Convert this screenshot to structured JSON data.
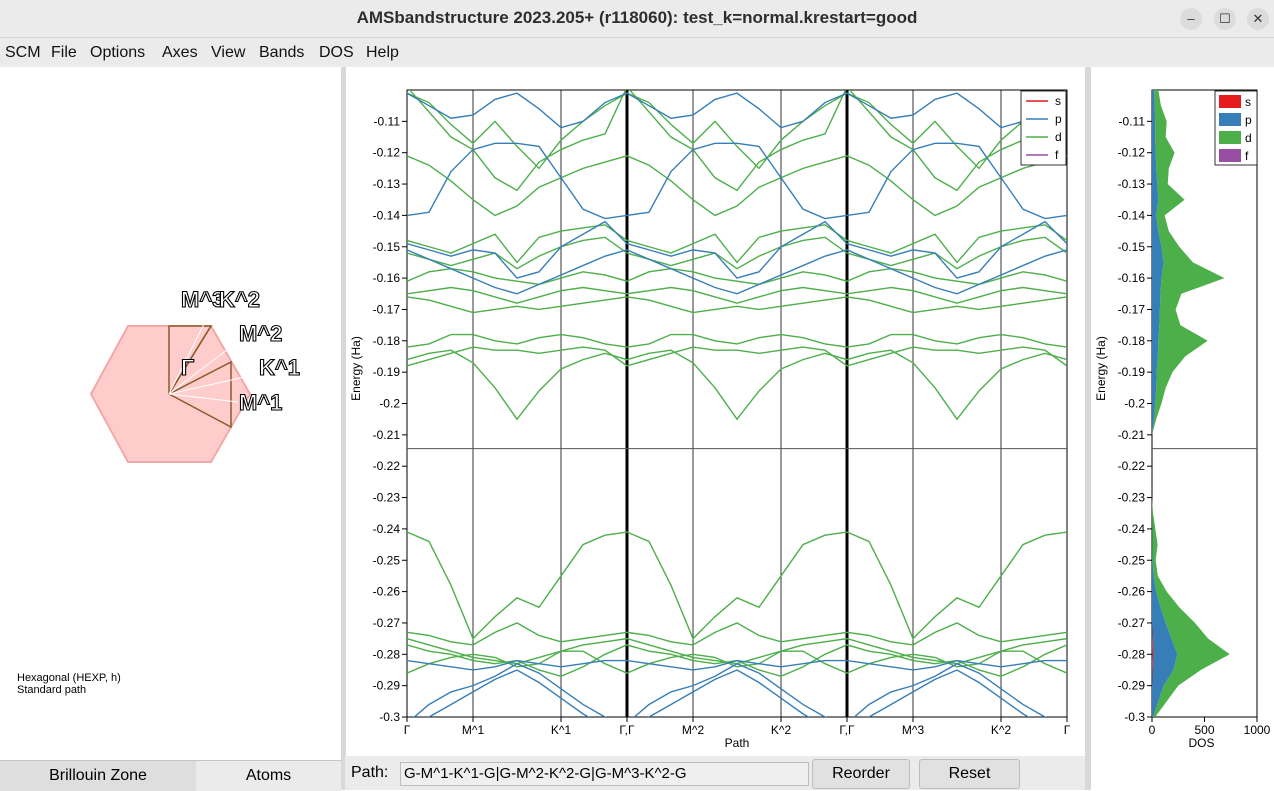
{
  "window": {
    "title": "AMSbandstructure 2023.205+ (r118060): test_k=normal.krestart=good",
    "minimize": "–",
    "maximize": "☐",
    "close": "✕"
  },
  "menu": [
    "SCM",
    "File",
    "Options",
    "Axes",
    "View",
    "Bands",
    "DOS",
    "Help"
  ],
  "left_panel": {
    "lattice_info": "Hexagonal (HEXP, h)",
    "path_info": "Standard path",
    "bz_labels": [
      "M^3",
      "K^2",
      "M^2",
      "Γ",
      "K^1",
      "M^1"
    ],
    "tabs": [
      "Brillouin Zone",
      "Atoms"
    ]
  },
  "bottom": {
    "path_label": "Path:",
    "path_value": "G-M^1-K^1-G|G-M^2-K^2-G|G-M^3-K^2-G",
    "reorder": "Reorder",
    "reset": "Reset"
  },
  "colors": {
    "s": "#e41a1c",
    "p": "#377eb8",
    "d": "#4daf4a",
    "f": "#984ea3",
    "bz_fill": "#ffcccc"
  },
  "chart_data": [
    {
      "type": "line",
      "title": "",
      "xlabel": "Path",
      "ylabel": "Energy (Ha)",
      "ylim": [
        -0.3,
        -0.1
      ],
      "y_ticks": [
        "-0.11",
        "-0.12",
        "-0.13",
        "-0.14",
        "-0.15",
        "-0.16",
        "-0.17",
        "-0.18",
        "-0.19",
        "-0.2",
        "-0.21",
        "-0.22",
        "-0.23",
        "-0.24",
        "-0.25",
        "-0.26",
        "-0.27",
        "-0.28",
        "-0.29",
        "-0.3"
      ],
      "x_ticks": [
        "Γ",
        "M^1",
        "K^1",
        "Γ,Γ",
        "M^2",
        "K^2",
        "Γ,Γ",
        "M^3",
        "K^2",
        "Γ"
      ],
      "fermi_level": -0.2144,
      "legend": [
        "s",
        "p",
        "d",
        "f"
      ],
      "legend_position": "top-right",
      "bands_d": [
        [
          -0.099,
          -0.107,
          -0.115,
          -0.119,
          -0.128,
          -0.132,
          -0.123,
          -0.119,
          -0.116,
          -0.114,
          -0.099,
          -0.107,
          -0.115,
          -0.119,
          -0.128,
          -0.132,
          -0.123,
          -0.119,
          -0.116,
          -0.114,
          -0.099,
          -0.107,
          -0.115,
          -0.119,
          -0.128,
          -0.132,
          -0.123,
          -0.119,
          -0.116,
          -0.114,
          -0.099
        ],
        [
          -0.101,
          -0.104,
          -0.111,
          -0.117,
          -0.11,
          -0.118,
          -0.125,
          -0.116,
          -0.11,
          -0.105,
          -0.101,
          -0.104,
          -0.111,
          -0.117,
          -0.11,
          -0.118,
          -0.125,
          -0.116,
          -0.11,
          -0.105,
          -0.101,
          -0.104,
          -0.111,
          -0.117,
          -0.11,
          -0.118,
          -0.125,
          -0.116,
          -0.11,
          -0.105,
          -0.101
        ],
        [
          -0.121,
          -0.124,
          -0.129,
          -0.135,
          -0.14,
          -0.137,
          -0.131,
          -0.128,
          -0.125,
          -0.123,
          -0.121,
          -0.124,
          -0.129,
          -0.135,
          -0.14,
          -0.137,
          -0.131,
          -0.128,
          -0.125,
          -0.123,
          -0.121,
          -0.124,
          -0.129,
          -0.135,
          -0.14,
          -0.137,
          -0.131,
          -0.128,
          -0.125,
          -0.123,
          -0.121
        ],
        [
          -0.148,
          -0.15,
          -0.152,
          -0.149,
          -0.146,
          -0.155,
          -0.147,
          -0.145,
          -0.144,
          -0.143,
          -0.148,
          -0.15,
          -0.152,
          -0.149,
          -0.146,
          -0.155,
          -0.147,
          -0.145,
          -0.144,
          -0.143,
          -0.148,
          -0.15,
          -0.152,
          -0.149,
          -0.146,
          -0.155,
          -0.147,
          -0.145,
          -0.144,
          -0.143,
          -0.148
        ],
        [
          -0.152,
          -0.154,
          -0.156,
          -0.154,
          -0.152,
          -0.157,
          -0.153,
          -0.15,
          -0.148,
          -0.147,
          -0.152,
          -0.154,
          -0.156,
          -0.154,
          -0.152,
          -0.157,
          -0.153,
          -0.15,
          -0.148,
          -0.147,
          -0.152,
          -0.154,
          -0.156,
          -0.154,
          -0.152,
          -0.157,
          -0.153,
          -0.15,
          -0.148,
          -0.147,
          -0.152
        ],
        [
          -0.161,
          -0.158,
          -0.157,
          -0.158,
          -0.16,
          -0.161,
          -0.162,
          -0.16,
          -0.158,
          -0.159,
          -0.161,
          -0.158,
          -0.157,
          -0.158,
          -0.16,
          -0.161,
          -0.162,
          -0.16,
          -0.158,
          -0.159,
          -0.161,
          -0.158,
          -0.157,
          -0.158,
          -0.16,
          -0.161,
          -0.162,
          -0.16,
          -0.158,
          -0.159,
          -0.161
        ],
        [
          -0.165,
          -0.164,
          -0.163,
          -0.164,
          -0.166,
          -0.168,
          -0.166,
          -0.164,
          -0.163,
          -0.164,
          -0.165,
          -0.164,
          -0.163,
          -0.164,
          -0.166,
          -0.168,
          -0.166,
          -0.164,
          -0.163,
          -0.164,
          -0.165,
          -0.164,
          -0.163,
          -0.164,
          -0.166,
          -0.168,
          -0.166,
          -0.164,
          -0.163,
          -0.164,
          -0.165
        ],
        [
          -0.166,
          -0.167,
          -0.169,
          -0.171,
          -0.17,
          -0.169,
          -0.17,
          -0.169,
          -0.168,
          -0.167,
          -0.166,
          -0.167,
          -0.169,
          -0.171,
          -0.17,
          -0.169,
          -0.17,
          -0.169,
          -0.168,
          -0.167,
          -0.166,
          -0.167,
          -0.169,
          -0.171,
          -0.17,
          -0.169,
          -0.17,
          -0.169,
          -0.168,
          -0.167,
          -0.166
        ],
        [
          -0.182,
          -0.181,
          -0.178,
          -0.178,
          -0.18,
          -0.181,
          -0.179,
          -0.178,
          -0.179,
          -0.181,
          -0.182,
          -0.181,
          -0.178,
          -0.178,
          -0.18,
          -0.181,
          -0.179,
          -0.178,
          -0.179,
          -0.181,
          -0.182,
          -0.181,
          -0.178,
          -0.178,
          -0.18,
          -0.181,
          -0.179,
          -0.178,
          -0.179,
          -0.181,
          -0.182
        ],
        [
          -0.188,
          -0.186,
          -0.184,
          -0.182,
          -0.183,
          -0.183,
          -0.184,
          -0.183,
          -0.182,
          -0.183,
          -0.188,
          -0.186,
          -0.184,
          -0.182,
          -0.183,
          -0.183,
          -0.184,
          -0.183,
          -0.182,
          -0.183,
          -0.188,
          -0.186,
          -0.184,
          -0.182,
          -0.183,
          -0.183,
          -0.184,
          -0.183,
          -0.182,
          -0.183,
          -0.188
        ],
        [
          -0.186,
          -0.184,
          -0.183,
          -0.187,
          -0.195,
          -0.205,
          -0.196,
          -0.189,
          -0.186,
          -0.184,
          -0.186,
          -0.184,
          -0.183,
          -0.187,
          -0.195,
          -0.205,
          -0.196,
          -0.189,
          -0.186,
          -0.184,
          -0.186,
          -0.184,
          -0.183,
          -0.187,
          -0.195,
          -0.205,
          -0.196,
          -0.189,
          -0.186,
          -0.184,
          -0.186
        ],
        [
          -0.241,
          -0.244,
          -0.258,
          -0.275,
          -0.268,
          -0.262,
          -0.265,
          -0.255,
          -0.245,
          -0.242,
          -0.241,
          -0.244,
          -0.258,
          -0.275,
          -0.268,
          -0.262,
          -0.265,
          -0.255,
          -0.245,
          -0.242,
          -0.241,
          -0.244,
          -0.258,
          -0.275,
          -0.268,
          -0.262,
          -0.265,
          -0.255,
          -0.245,
          -0.242,
          -0.241
        ],
        [
          -0.273,
          -0.274,
          -0.276,
          -0.277,
          -0.273,
          -0.27,
          -0.274,
          -0.276,
          -0.275,
          -0.274,
          -0.273,
          -0.274,
          -0.276,
          -0.277,
          -0.273,
          -0.27,
          -0.274,
          -0.276,
          -0.275,
          -0.274,
          -0.273,
          -0.274,
          -0.276,
          -0.277,
          -0.273,
          -0.27,
          -0.274,
          -0.276,
          -0.275,
          -0.274,
          -0.273
        ],
        [
          -0.275,
          -0.277,
          -0.279,
          -0.281,
          -0.282,
          -0.283,
          -0.281,
          -0.279,
          -0.277,
          -0.276,
          -0.275,
          -0.277,
          -0.279,
          -0.281,
          -0.282,
          -0.283,
          -0.281,
          -0.279,
          -0.277,
          -0.276,
          -0.275,
          -0.277,
          -0.279,
          -0.281,
          -0.282,
          -0.283,
          -0.281,
          -0.279,
          -0.277,
          -0.276,
          -0.275
        ],
        [
          -0.277,
          -0.279,
          -0.28,
          -0.282,
          -0.283,
          -0.282,
          -0.285,
          -0.287,
          -0.284,
          -0.28,
          -0.277,
          -0.279,
          -0.28,
          -0.282,
          -0.283,
          -0.282,
          -0.285,
          -0.287,
          -0.284,
          -0.28,
          -0.277,
          -0.279,
          -0.28,
          -0.282,
          -0.283,
          -0.282,
          -0.285,
          -0.287,
          -0.284,
          -0.28,
          -0.277
        ],
        [
          -0.286,
          -0.283,
          -0.281,
          -0.28,
          -0.281,
          -0.284,
          -0.283,
          -0.279,
          -0.279,
          -0.283,
          -0.286,
          -0.283,
          -0.281,
          -0.28,
          -0.281,
          -0.284,
          -0.283,
          -0.279,
          -0.279,
          -0.283,
          -0.286,
          -0.283,
          -0.281,
          -0.28,
          -0.281,
          -0.284,
          -0.283,
          -0.279,
          -0.279,
          -0.283,
          -0.286
        ]
      ],
      "bands_p": [
        [
          -0.101,
          -0.105,
          -0.109,
          -0.108,
          -0.103,
          -0.101,
          -0.106,
          -0.112,
          -0.11,
          -0.104,
          -0.101,
          -0.105,
          -0.109,
          -0.108,
          -0.103,
          -0.101,
          -0.106,
          -0.112,
          -0.11,
          -0.104,
          -0.101,
          -0.105,
          -0.109,
          -0.108,
          -0.103,
          -0.101,
          -0.106,
          -0.112,
          -0.11,
          -0.104,
          -0.101
        ],
        [
          -0.14,
          -0.139,
          -0.126,
          -0.119,
          -0.117,
          -0.117,
          -0.118,
          -0.128,
          -0.138,
          -0.141,
          -0.14,
          -0.139,
          -0.126,
          -0.119,
          -0.117,
          -0.117,
          -0.118,
          -0.128,
          -0.138,
          -0.141,
          -0.14,
          -0.139,
          -0.126,
          -0.119,
          -0.117,
          -0.117,
          -0.118,
          -0.128,
          -0.138,
          -0.141,
          -0.14
        ],
        [
          -0.149,
          -0.151,
          -0.153,
          -0.151,
          -0.152,
          -0.16,
          -0.158,
          -0.15,
          -0.146,
          -0.142,
          -0.149,
          -0.151,
          -0.153,
          -0.151,
          -0.152,
          -0.16,
          -0.158,
          -0.15,
          -0.146,
          -0.142,
          -0.149,
          -0.151,
          -0.153,
          -0.151,
          -0.152,
          -0.16,
          -0.158,
          -0.15,
          -0.146,
          -0.142,
          -0.149
        ],
        [
          -0.151,
          -0.154,
          -0.157,
          -0.16,
          -0.163,
          -0.165,
          -0.162,
          -0.159,
          -0.156,
          -0.153,
          -0.151,
          -0.154,
          -0.157,
          -0.16,
          -0.163,
          -0.165,
          -0.162,
          -0.159,
          -0.156,
          -0.153,
          -0.151,
          -0.154,
          -0.157,
          -0.16,
          -0.163,
          -0.165,
          -0.162,
          -0.159,
          -0.156,
          -0.153,
          -0.151
        ],
        [
          -0.302,
          -0.296,
          -0.292,
          -0.29,
          -0.287,
          -0.283,
          -0.286,
          -0.291,
          -0.296,
          -0.3,
          -0.302,
          -0.296,
          -0.292,
          -0.29,
          -0.287,
          -0.283,
          -0.286,
          -0.291,
          -0.296,
          -0.3,
          -0.302,
          -0.296,
          -0.292,
          -0.29,
          -0.287,
          -0.283,
          -0.286,
          -0.291,
          -0.296,
          -0.3,
          -0.302
        ],
        [
          -0.305,
          -0.3,
          -0.296,
          -0.292,
          -0.288,
          -0.285,
          -0.289,
          -0.294,
          -0.299,
          -0.303,
          -0.305,
          -0.3,
          -0.296,
          -0.292,
          -0.288,
          -0.285,
          -0.289,
          -0.294,
          -0.299,
          -0.303,
          -0.305,
          -0.3,
          -0.296,
          -0.292,
          -0.288,
          -0.285,
          -0.289,
          -0.294,
          -0.299,
          -0.303,
          -0.305
        ],
        [
          -0.282,
          -0.283,
          -0.284,
          -0.285,
          -0.284,
          -0.282,
          -0.283,
          -0.284,
          -0.283,
          -0.282,
          -0.282,
          -0.283,
          -0.284,
          -0.285,
          -0.284,
          -0.282,
          -0.283,
          -0.284,
          -0.283,
          -0.282,
          -0.282,
          -0.283,
          -0.284,
          -0.285,
          -0.284,
          -0.282,
          -0.283,
          -0.284,
          -0.283,
          -0.282,
          -0.282
        ]
      ]
    },
    {
      "type": "area",
      "title": "",
      "xlabel": "DOS",
      "ylabel": "Energy (Ha)",
      "xlim": [
        0,
        1000
      ],
      "x_ticks": [
        "0",
        "500",
        "1000"
      ],
      "ylim": [
        -0.3,
        -0.1
      ],
      "legend": [
        "s",
        "p",
        "d",
        "f"
      ],
      "legend_position": "top-right",
      "energy": [
        -0.3,
        -0.295,
        -0.29,
        -0.285,
        -0.28,
        -0.275,
        -0.27,
        -0.265,
        -0.26,
        -0.255,
        -0.25,
        -0.245,
        -0.24,
        -0.235,
        -0.23,
        -0.22,
        -0.215,
        -0.21,
        -0.205,
        -0.2,
        -0.195,
        -0.19,
        -0.185,
        -0.18,
        -0.175,
        -0.17,
        -0.165,
        -0.16,
        -0.155,
        -0.15,
        -0.145,
        -0.14,
        -0.135,
        -0.13,
        -0.125,
        -0.12,
        -0.115,
        -0.11,
        -0.105,
        -0.1
      ],
      "s": [
        0,
        0,
        0,
        5,
        10,
        5,
        0,
        0,
        0,
        0,
        0,
        0,
        0,
        0,
        0,
        0,
        0,
        0,
        0,
        0,
        0,
        0,
        0,
        0,
        0,
        0,
        0,
        0,
        0,
        0,
        0,
        0,
        0,
        0,
        0,
        0,
        0,
        0,
        0,
        0
      ],
      "p": [
        10,
        60,
        110,
        200,
        230,
        180,
        130,
        80,
        40,
        15,
        5,
        3,
        2,
        0,
        0,
        0,
        0,
        0,
        20,
        30,
        40,
        45,
        55,
        60,
        70,
        75,
        80,
        90,
        110,
        90,
        60,
        40,
        60,
        50,
        40,
        35,
        30,
        30,
        25,
        20
      ],
      "d": [
        20,
        80,
        140,
        260,
        500,
        350,
        280,
        180,
        100,
        40,
        30,
        50,
        30,
        10,
        0,
        0,
        0,
        0,
        20,
        60,
        90,
        150,
        260,
        470,
        200,
        150,
        200,
        600,
        280,
        170,
        100,
        80,
        250,
        100,
        120,
        180,
        100,
        110,
        60,
        40
      ]
    }
  ]
}
